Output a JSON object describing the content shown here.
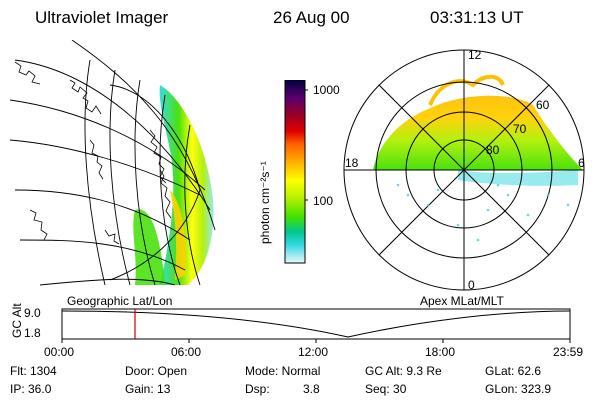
{
  "header": {
    "title": "Ultraviolet Imager",
    "date": "26 Aug 00",
    "time": "03:31:13 UT"
  },
  "geo_panel": {
    "label": "Geographic Lat/Lon"
  },
  "colorbar": {
    "unit_label": "photon cm⁻²s⁻¹",
    "ticks": [
      "1000",
      "100"
    ],
    "colors": [
      "#000040",
      "#5a006e",
      "#a00020",
      "#e00000",
      "#ff6000",
      "#ffb000",
      "#ffff00",
      "#b0f000",
      "#40e000",
      "#00c890",
      "#30d8e0",
      "#90e8f0",
      "#e8f8f8"
    ]
  },
  "polar_panel": {
    "label": "Apex MLat/MLT",
    "mlt_labels": {
      "top": "12",
      "left": "18",
      "right": "6",
      "bottom": "0"
    },
    "lat_labels": [
      "60",
      "70",
      "80"
    ]
  },
  "altitude_plot": {
    "ylabel": "GC Alt",
    "yticks": [
      "9.0",
      "1.8"
    ],
    "xticks": [
      "00:00",
      "06:00",
      "12:00",
      "18:00",
      "23:59"
    ],
    "marker_color": "#cc0000"
  },
  "info": {
    "flt": "Flt: 1304",
    "ip": "IP: 36.0",
    "door": "Door: Open",
    "gain": "Gain: 13",
    "mode": "Mode: Normal",
    "dsp_label": "Dsp:",
    "dsp_value": "3.8",
    "gc_alt": "GC Alt: 9.3 Re",
    "seq": "Seq: 30",
    "glat": "GLat:  62.6",
    "glon": "GLon: 323.9"
  }
}
